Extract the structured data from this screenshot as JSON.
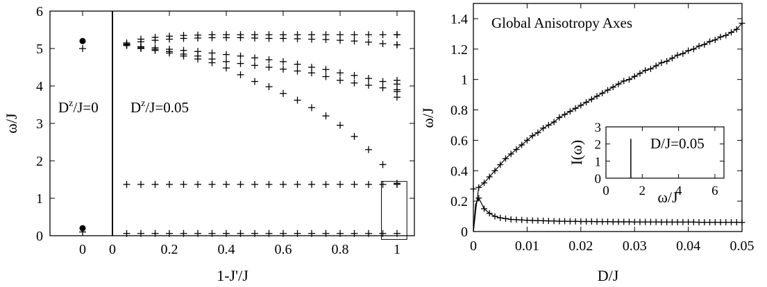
{
  "chart_data": [
    {
      "type": "scatter",
      "xlabel": "1-J'/J",
      "ylabel": "ω/J",
      "ylim": [
        0,
        6
      ],
      "panels": [
        {
          "name": "left",
          "xticks": [
            "0"
          ],
          "annotation": "D",
          "annotation_sup": "z",
          "annotation_rest": "/J=0"
        },
        {
          "name": "right",
          "xticks": [
            "0",
            "0.2",
            "0.4",
            "0.6",
            "0.8",
            "1"
          ],
          "xlim": [
            0,
            1
          ],
          "annotation": "D",
          "annotation_sup": "z",
          "annotation_rest": "/J=0.05"
        }
      ],
      "yticks": [
        "0",
        "1",
        "2",
        "3",
        "4",
        "5",
        "6"
      ],
      "xticks_left": [
        "0"
      ],
      "xticks_right": [
        "0",
        "0.2",
        "0.4",
        "0.6",
        "0.8",
        "1"
      ],
      "dz0": {
        "dots": [
          5.2,
          0.2
        ],
        "crosses": [
          5.0,
          0.1
        ]
      },
      "x": [
        0.05,
        0.1,
        0.15,
        0.2,
        0.25,
        0.3,
        0.35,
        0.4,
        0.45,
        0.5,
        0.55,
        0.6,
        0.65,
        0.7,
        0.75,
        0.8,
        0.85,
        0.9,
        0.95,
        1.0
      ],
      "series": [
        {
          "values": [
            5.15,
            5.25,
            5.3,
            5.33,
            5.35,
            5.36,
            5.37,
            5.37,
            5.37,
            5.37,
            5.37,
            5.37,
            5.37,
            5.37,
            5.37,
            5.37,
            5.37,
            5.37,
            5.37,
            5.37
          ]
        },
        {
          "values": [
            5.12,
            5.18,
            5.22,
            5.25,
            5.27,
            5.28,
            5.29,
            5.29,
            5.29,
            5.28,
            5.27,
            5.27,
            5.26,
            5.25,
            5.24,
            5.22,
            5.2,
            5.17,
            5.13,
            5.1
          ]
        },
        {
          "values": [
            5.1,
            5.05,
            5.02,
            4.98,
            4.95,
            4.92,
            4.88,
            4.84,
            4.8,
            4.75,
            4.7,
            4.65,
            4.58,
            4.5,
            4.44,
            4.35,
            4.28,
            4.2,
            4.12,
            4.05
          ]
        },
        {
          "values": [
            5.1,
            5.02,
            4.98,
            4.92,
            4.85,
            4.8,
            4.72,
            4.65,
            4.6,
            4.55,
            4.5,
            4.45,
            4.4,
            4.35,
            4.25,
            4.15,
            4.08,
            4.02,
            3.95,
            3.9
          ]
        },
        {
          "values": [
            5.08,
            5.0,
            4.95,
            4.88,
            4.8,
            4.72,
            4.62,
            4.48,
            4.3,
            4.12,
            3.98,
            3.8,
            3.62,
            3.42,
            3.2,
            2.95,
            2.65,
            2.3,
            1.9,
            1.4
          ]
        },
        {
          "values": [
            1.37,
            1.37,
            1.37,
            1.37,
            1.37,
            1.37,
            1.37,
            1.37,
            1.37,
            1.37,
            1.37,
            1.37,
            1.37,
            1.37,
            1.37,
            1.37,
            1.37,
            1.37,
            1.37,
            1.37
          ]
        },
        {
          "values": [
            0.06,
            0.06,
            0.06,
            0.06,
            0.06,
            0.06,
            0.06,
            0.06,
            0.06,
            0.06,
            0.06,
            0.06,
            0.06,
            0.06,
            0.06,
            0.06,
            0.06,
            0.06,
            0.06,
            0.06
          ]
        }
      ],
      "x1_extra": [
        5.37,
        5.1,
        4.15,
        3.85,
        3.7
      ],
      "box": {
        "x": [
          0.95,
          1.02
        ],
        "y": [
          -0.1,
          1.45
        ]
      }
    },
    {
      "type": "scatter",
      "title": "Global Anisotropy Axes",
      "xlabel": "D/J",
      "ylabel": "ω/J",
      "xlim": [
        0,
        0.05
      ],
      "ylim": [
        0,
        1.5
      ],
      "xticks": [
        "0",
        "0.01",
        "0.02",
        "0.03",
        "0.04",
        "0.05"
      ],
      "yticks": [
        "0",
        "0.2",
        "0.4",
        "0.6",
        "0.8",
        "1",
        "1.2",
        "1.4"
      ],
      "series": [
        {
          "x": [
            0.0,
            0.001,
            0.002,
            0.003,
            0.004,
            0.005,
            0.006,
            0.007,
            0.008,
            0.009,
            0.01,
            0.011,
            0.012,
            0.013,
            0.014,
            0.015,
            0.016,
            0.017,
            0.018,
            0.019,
            0.02,
            0.021,
            0.022,
            0.023,
            0.024,
            0.025,
            0.026,
            0.027,
            0.028,
            0.029,
            0.03,
            0.031,
            0.032,
            0.033,
            0.034,
            0.035,
            0.036,
            0.037,
            0.038,
            0.039,
            0.04,
            0.041,
            0.042,
            0.043,
            0.044,
            0.045,
            0.046,
            0.047,
            0.048,
            0.049,
            0.05
          ],
          "values": [
            0.28,
            0.29,
            0.32,
            0.36,
            0.4,
            0.44,
            0.48,
            0.51,
            0.54,
            0.57,
            0.6,
            0.63,
            0.65,
            0.68,
            0.7,
            0.72,
            0.75,
            0.77,
            0.79,
            0.81,
            0.83,
            0.85,
            0.87,
            0.89,
            0.91,
            0.93,
            0.95,
            0.97,
            0.99,
            1.0,
            1.02,
            1.04,
            1.06,
            1.07,
            1.09,
            1.11,
            1.12,
            1.14,
            1.16,
            1.17,
            1.19,
            1.2,
            1.22,
            1.23,
            1.25,
            1.26,
            1.28,
            1.29,
            1.31,
            1.33,
            1.37
          ]
        },
        {
          "x": [
            0.001,
            0.002,
            0.003,
            0.004,
            0.005,
            0.006,
            0.007,
            0.008,
            0.009,
            0.01,
            0.011,
            0.012,
            0.013,
            0.014,
            0.015,
            0.016,
            0.017,
            0.018,
            0.019,
            0.02,
            0.021,
            0.022,
            0.023,
            0.024,
            0.025,
            0.026,
            0.027,
            0.028,
            0.029,
            0.03,
            0.031,
            0.032,
            0.033,
            0.034,
            0.035,
            0.036,
            0.037,
            0.038,
            0.039,
            0.04,
            0.041,
            0.042,
            0.043,
            0.044,
            0.045,
            0.046,
            0.047,
            0.048,
            0.049,
            0.05
          ],
          "values": [
            0.22,
            0.15,
            0.12,
            0.1,
            0.09,
            0.085,
            0.08,
            0.078,
            0.076,
            0.074,
            0.073,
            0.072,
            0.071,
            0.07,
            0.069,
            0.068,
            0.068,
            0.067,
            0.067,
            0.066,
            0.066,
            0.066,
            0.065,
            0.065,
            0.065,
            0.064,
            0.064,
            0.064,
            0.064,
            0.063,
            0.063,
            0.063,
            0.063,
            0.063,
            0.062,
            0.062,
            0.062,
            0.062,
            0.062,
            0.062,
            0.062,
            0.061,
            0.061,
            0.061,
            0.061,
            0.061,
            0.061,
            0.061,
            0.061,
            0.06
          ]
        }
      ],
      "curves": [
        {
          "form": "upper",
          "note": "sqrt-like"
        },
        {
          "form": "lower"
        }
      ],
      "inset": {
        "xlabel": "ω/J",
        "ylabel": "I(ω)",
        "label": "D/J=0.05",
        "xlim": [
          0,
          6.5
        ],
        "ylim": [
          0,
          3
        ],
        "xticks": [
          "0",
          "2",
          "4",
          "6"
        ],
        "yticks": [
          "0",
          "1",
          "2",
          "3"
        ],
        "peak": {
          "x": 1.37,
          "y": 2.3
        }
      }
    }
  ]
}
